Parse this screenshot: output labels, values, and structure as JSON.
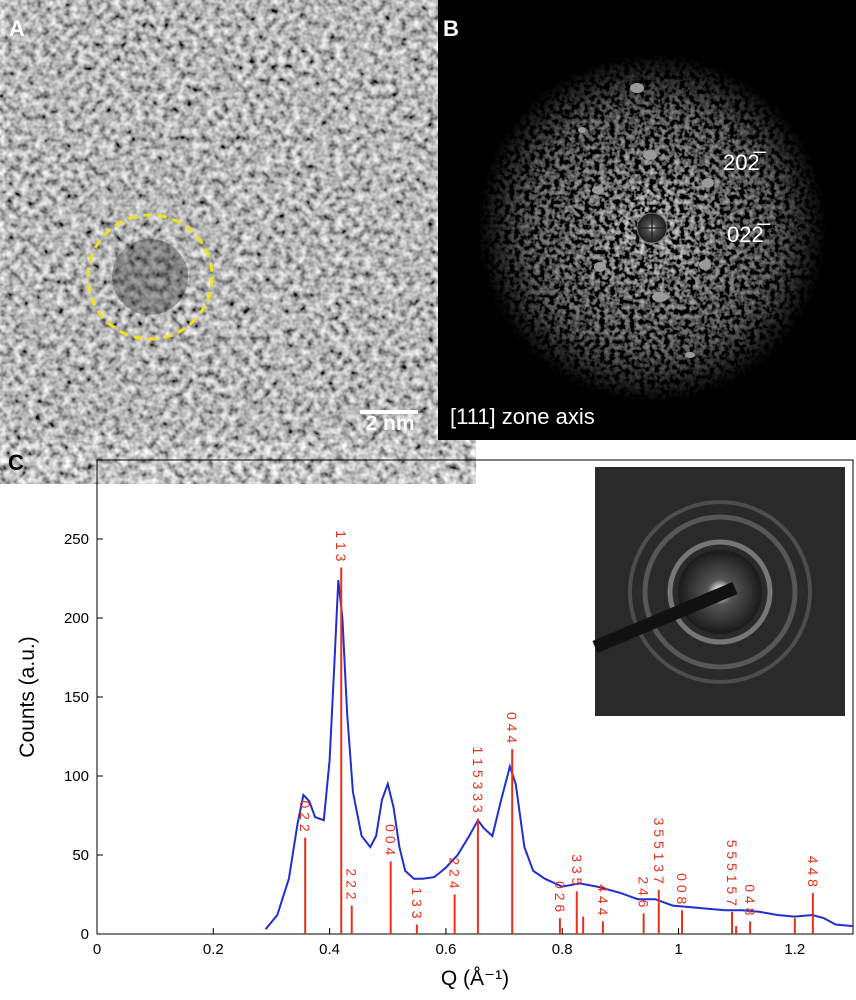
{
  "panels": {
    "a": {
      "label": "A",
      "scale_bar": "2 nm"
    },
    "b": {
      "label": "B",
      "spots": [
        "202̅",
        "022̅"
      ],
      "zone_axis": "[111] zone axis"
    },
    "c": {
      "label": "C"
    }
  },
  "chart_data": {
    "type": "line",
    "x_label": "Q (Å⁻¹)",
    "y_label": "Counts (a.u.)",
    "xlim": [
      0,
      1.3
    ],
    "xticks": [
      0,
      0.2,
      0.4,
      0.6,
      0.8,
      1,
      1.2
    ],
    "ylim": [
      0,
      300
    ],
    "yticks": [
      0,
      50,
      100,
      150,
      200,
      250
    ],
    "series": [
      {
        "color": "#1f2fd0",
        "x": [
          0.29,
          0.31,
          0.33,
          0.345,
          0.355,
          0.365,
          0.375,
          0.39,
          0.4,
          0.408,
          0.415,
          0.422,
          0.43,
          0.44,
          0.455,
          0.47,
          0.48,
          0.49,
          0.5,
          0.51,
          0.52,
          0.53,
          0.545,
          0.56,
          0.58,
          0.6,
          0.62,
          0.64,
          0.655,
          0.665,
          0.68,
          0.695,
          0.71,
          0.72,
          0.735,
          0.75,
          0.77,
          0.8,
          0.83,
          0.86,
          0.9,
          0.93,
          0.96,
          0.99,
          1.02,
          1.05,
          1.08,
          1.11,
          1.14,
          1.17,
          1.2,
          1.23,
          1.25,
          1.27,
          1.3
        ],
        "values": [
          3,
          12,
          35,
          70,
          88,
          84,
          74,
          72,
          110,
          170,
          224,
          200,
          140,
          90,
          62,
          55,
          62,
          85,
          95,
          80,
          55,
          40,
          35,
          35,
          36,
          42,
          50,
          62,
          72,
          67,
          62,
          85,
          106,
          95,
          55,
          40,
          35,
          30,
          32,
          30,
          26,
          22,
          22,
          18,
          17,
          16,
          15,
          15,
          14,
          12,
          11,
          12,
          10,
          6,
          5
        ]
      },
      {
        "type": "stick",
        "color": "#e8301c",
        "x": [
          0.358,
          0.42,
          0.438,
          0.505,
          0.55,
          0.615,
          0.655,
          0.714,
          0.796,
          0.825,
          0.836,
          0.87,
          0.94,
          0.966,
          1.006,
          1.092,
          1.099,
          1.123,
          1.2,
          1.231
        ],
        "values": [
          61,
          232,
          18,
          46,
          6,
          25,
          73,
          117,
          10,
          27,
          11,
          8,
          13,
          28,
          15,
          14,
          5,
          8,
          10,
          26
        ],
        "peak_labels": [
          "0 2 2",
          "1 1 3",
          "2 2 2",
          "0 0 4",
          "1 3 3",
          "2 2 4",
          "1 1 5 3 3 3",
          "0 4 4",
          "0 2 6",
          "3 3 5",
          null,
          "4 4 4",
          "2 4 6",
          "3 5 5 1 3 7",
          "0 0 8",
          "5 5 5 1 5 7",
          null,
          "0 4 8",
          null,
          "4 4 8"
        ]
      }
    ]
  }
}
